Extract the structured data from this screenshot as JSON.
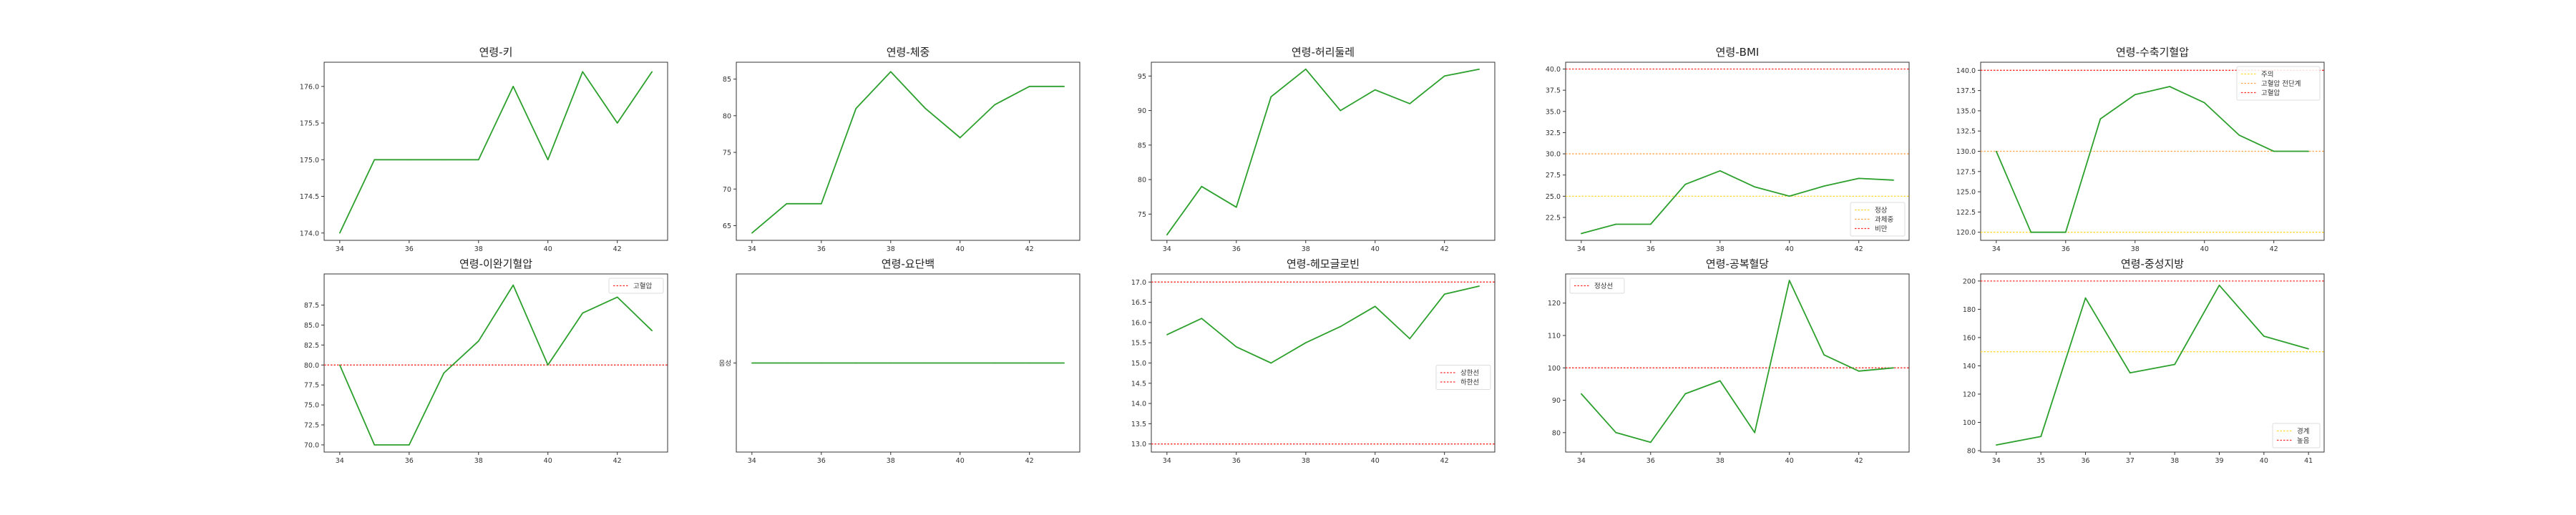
{
  "chart_data": [
    {
      "type": "line",
      "title": "연령-키",
      "x": [
        34,
        35,
        36,
        37,
        38,
        39,
        40,
        41,
        42,
        43
      ],
      "series": [
        {
          "values": [
            174.0,
            175.0,
            175.0,
            175.0,
            175.0,
            176.0,
            175.0,
            176.2,
            175.5,
            176.2
          ],
          "color": "#2ca02c"
        }
      ],
      "xlim": [
        33.55,
        43.45
      ],
      "ylim": [
        173.9,
        176.33
      ],
      "xticks": [
        34,
        36,
        38,
        40,
        42
      ],
      "yticks": [
        174.0,
        174.5,
        175.0,
        175.5,
        176.0
      ],
      "hlines": [],
      "legend": null
    },
    {
      "type": "line",
      "title": "연령-체중",
      "x": [
        34,
        35,
        36,
        37,
        38,
        39,
        40,
        41,
        42,
        43
      ],
      "series": [
        {
          "values": [
            64,
            68,
            68,
            81,
            86,
            81,
            77,
            81.5,
            84,
            84
          ],
          "color": "#2ca02c"
        }
      ],
      "xlim": [
        33.55,
        43.45
      ],
      "ylim": [
        63,
        87.3
      ],
      "xticks": [
        34,
        36,
        38,
        40,
        42
      ],
      "yticks": [
        65,
        70,
        75,
        80,
        85
      ],
      "hlines": [],
      "legend": null
    },
    {
      "type": "line",
      "title": "연령-허리둘레",
      "x": [
        34,
        35,
        36,
        37,
        38,
        39,
        40,
        41,
        42,
        43
      ],
      "series": [
        {
          "values": [
            72,
            79,
            76,
            92,
            96,
            90,
            93,
            91,
            95,
            96
          ],
          "color": "#2ca02c"
        }
      ],
      "xlim": [
        33.55,
        43.45
      ],
      "ylim": [
        71.2,
        97
      ],
      "xticks": [
        34,
        36,
        38,
        40,
        42
      ],
      "yticks": [
        75,
        80,
        85,
        90,
        95
      ],
      "hlines": [],
      "legend": null
    },
    {
      "type": "line",
      "title": "연령-BMI",
      "x": [
        34,
        35,
        36,
        37,
        38,
        39,
        40,
        41,
        42,
        43
      ],
      "series": [
        {
          "values": [
            20.6,
            21.7,
            21.7,
            26.4,
            28.0,
            26.1,
            25.0,
            26.2,
            27.1,
            26.9
          ],
          "color": "#2ca02c"
        }
      ],
      "xlim": [
        33.55,
        43.45
      ],
      "ylim": [
        19.8,
        40.8
      ],
      "xticks": [
        34,
        36,
        38,
        40,
        42
      ],
      "yticks": [
        22.5,
        25.0,
        27.5,
        30.0,
        32.5,
        35.0,
        37.5,
        40.0
      ],
      "hlines": [
        {
          "y": 25,
          "color": "#ffd92f",
          "label": "정상"
        },
        {
          "y": 30,
          "color": "#ffa64d",
          "label": "과체중"
        },
        {
          "y": 40,
          "color": "#ff2a2a",
          "label": "비만"
        }
      ],
      "legend": "lower-right"
    },
    {
      "type": "line",
      "title": "연령-수축기혈압",
      "x": [
        34,
        35,
        36,
        37,
        38,
        39,
        40,
        41,
        42,
        43
      ],
      "series": [
        {
          "values": [
            130,
            120,
            120,
            134,
            137,
            138,
            136,
            132,
            130,
            130
          ],
          "color": "#2ca02c"
        }
      ],
      "xlim": [
        33.55,
        43.45
      ],
      "ylim": [
        119.0,
        141.0
      ],
      "xticks": [
        34,
        36,
        38,
        40,
        42
      ],
      "yticks": [
        120.0,
        122.5,
        125.0,
        127.5,
        130.0,
        132.5,
        135.0,
        137.5,
        140.0
      ],
      "hlines": [
        {
          "y": 120,
          "color": "#ffd92f",
          "label": "주의"
        },
        {
          "y": 130,
          "color": "#ffa64d",
          "label": "고혈압 전단계"
        },
        {
          "y": 140,
          "color": "#ff2a2a",
          "label": "고혈압"
        }
      ],
      "legend": "upper-right"
    },
    {
      "type": "line",
      "title": "연령-이완기혈압",
      "x": [
        34,
        35,
        36,
        37,
        38,
        39,
        40,
        41,
        42,
        43
      ],
      "series": [
        {
          "values": [
            80,
            70,
            70,
            79,
            83,
            90,
            80,
            86.5,
            88.5,
            84.3
          ],
          "color": "#2ca02c"
        }
      ],
      "xlim": [
        33.55,
        43.45
      ],
      "ylim": [
        69.1,
        91.4
      ],
      "xticks": [
        34,
        36,
        38,
        40,
        42
      ],
      "yticks": [
        70.0,
        72.5,
        75.0,
        77.5,
        80.0,
        82.5,
        85.0,
        87.5
      ],
      "hlines": [
        {
          "y": 80,
          "color": "#ff2a2a",
          "label": "고혈압"
        }
      ],
      "legend": "upper-right"
    },
    {
      "type": "line",
      "title": "연령-요단백",
      "x": [
        34,
        35,
        36,
        37,
        38,
        39,
        40,
        41,
        42,
        43
      ],
      "series": [
        {
          "values": [
            0,
            0,
            0,
            0,
            0,
            0,
            0,
            0,
            0,
            0
          ],
          "color": "#2ca02c"
        }
      ],
      "xlim": [
        33.55,
        43.45
      ],
      "ylim": [
        -1,
        1
      ],
      "xticks": [
        34,
        36,
        38,
        40,
        42
      ],
      "yticks": [
        0
      ],
      "ytick_labels": [
        "음성"
      ],
      "hlines": [],
      "legend": null
    },
    {
      "type": "line",
      "title": "연령-헤모글로빈",
      "x": [
        34,
        35,
        36,
        37,
        38,
        39,
        40,
        41,
        42,
        43
      ],
      "series": [
        {
          "values": [
            15.7,
            16.1,
            15.4,
            15.0,
            15.5,
            15.9,
            16.4,
            15.6,
            16.7,
            16.9
          ],
          "color": "#2ca02c"
        }
      ],
      "xlim": [
        33.55,
        43.45
      ],
      "ylim": [
        12.8,
        17.2
      ],
      "xticks": [
        34,
        36,
        38,
        40,
        42
      ],
      "yticks": [
        13.0,
        13.5,
        14.0,
        14.5,
        15.0,
        15.5,
        16.0,
        16.5,
        17.0
      ],
      "hlines": [
        {
          "y": 17,
          "color": "#ff2a2a",
          "label": "상한선"
        },
        {
          "y": 13,
          "color": "#ff2a2a",
          "label": "하한선"
        }
      ],
      "legend": "center-right"
    },
    {
      "type": "line",
      "title": "연령-공복혈당",
      "x": [
        34,
        35,
        36,
        37,
        38,
        39,
        40,
        41,
        42,
        43
      ],
      "series": [
        {
          "values": [
            92,
            80,
            77,
            92,
            96,
            80,
            127,
            104,
            99,
            100
          ],
          "color": "#2ca02c"
        }
      ],
      "xlim": [
        33.55,
        43.45
      ],
      "ylim": [
        74,
        129
      ],
      "xticks": [
        34,
        36,
        38,
        40,
        42
      ],
      "yticks": [
        80,
        90,
        100,
        110,
        120
      ],
      "hlines": [
        {
          "y": 100,
          "color": "#ff2a2a",
          "label": "정상선"
        }
      ],
      "legend": "upper-left"
    },
    {
      "type": "line",
      "title": "연령-중성지방",
      "x": [
        34,
        35,
        36,
        37,
        38,
        39,
        40,
        41
      ],
      "series": [
        {
          "values": [
            84,
            90,
            188,
            135,
            141,
            197,
            161,
            152
          ],
          "color": "#2ca02c"
        }
      ],
      "xlim": [
        33.65,
        41.35
      ],
      "ylim": [
        79,
        205
      ],
      "xticks": [
        34,
        35,
        36,
        37,
        38,
        39,
        40,
        41
      ],
      "yticks": [
        80,
        100,
        120,
        140,
        160,
        180,
        200
      ],
      "hlines": [
        {
          "y": 150,
          "color": "#ffd92f",
          "label": "경계"
        },
        {
          "y": 200,
          "color": "#ff2a2a",
          "label": "높음"
        }
      ],
      "legend": "lower-right"
    }
  ]
}
